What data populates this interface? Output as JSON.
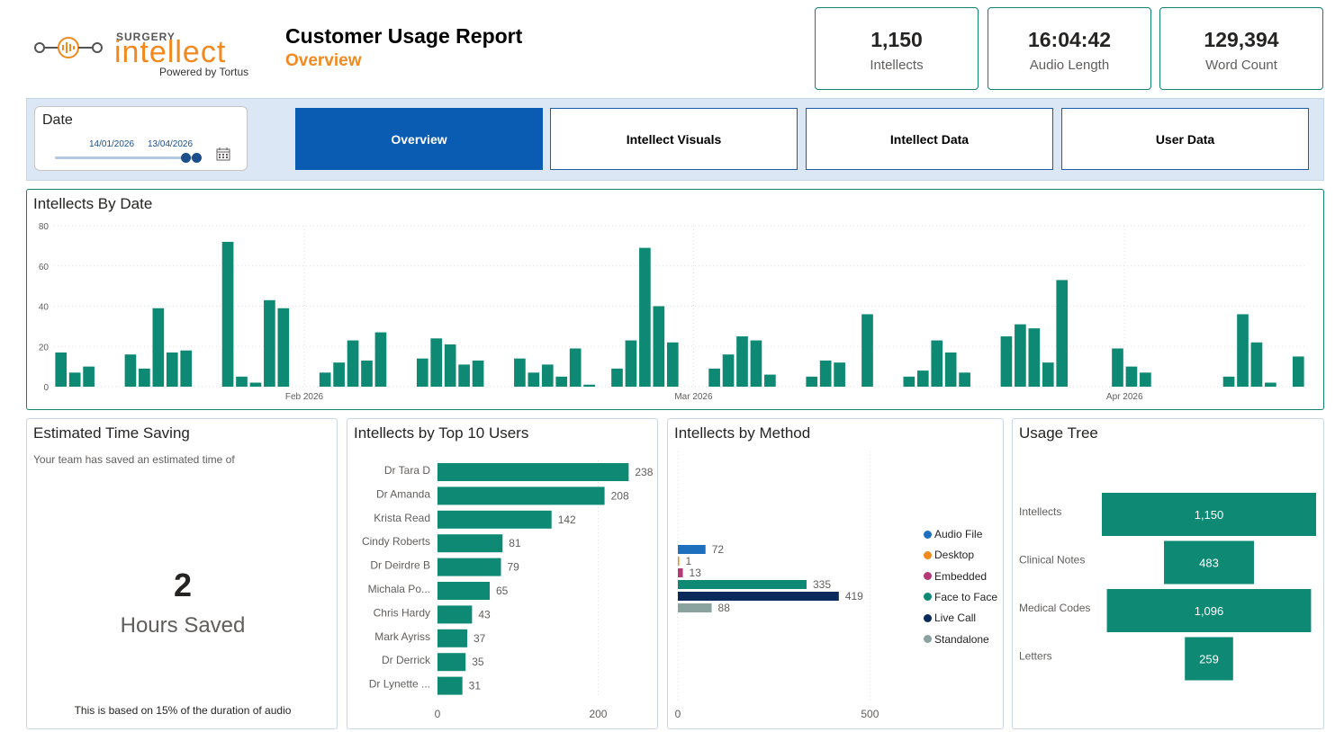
{
  "logo": {
    "brand_top": "SURGERY",
    "brand_main": "intellect",
    "tagline": "Powered by Tortus"
  },
  "header": {
    "title": "Customer Usage Report",
    "subtitle": "Overview"
  },
  "kpis": [
    {
      "value": "1,150",
      "label": "Intellects"
    },
    {
      "value": "16:04:42",
      "label": "Audio Length"
    },
    {
      "value": "129,394",
      "label": "Word Count"
    }
  ],
  "date_slicer": {
    "title": "Date",
    "start": "14/01/2026",
    "end": "13/04/2026"
  },
  "nav": [
    {
      "label": "Overview",
      "active": true
    },
    {
      "label": "Intellect Visuals",
      "active": false
    },
    {
      "label": "Intellect Data",
      "active": false
    },
    {
      "label": "User Data",
      "active": false
    }
  ],
  "panels": {
    "by_date": "Intellects By Date",
    "saving": "Estimated Time Saving",
    "top10": "Intellects by Top 10 Users",
    "method": "Intellects by Method",
    "tree": "Usage Tree"
  },
  "saving": {
    "intro": "Your team has saved an estimated time of",
    "value": "2",
    "unit": "Hours Saved",
    "note": "This is based on 15% of the duration of audio"
  },
  "colors": {
    "teal": "#0e8a74",
    "nav_blue": "#0a5cb3",
    "accent_orange": "#f2891e"
  },
  "chart_data": [
    {
      "type": "bar",
      "title": "Intellects By Date",
      "x_tick_labels": [
        "Feb 2026",
        "Mar 2026",
        "Apr 2026"
      ],
      "y_ticks": [
        0,
        20,
        40,
        60,
        80
      ],
      "ylim": [
        0,
        80
      ],
      "x_start": "2026-01-14",
      "series": [
        {
          "values": [
            17,
            7,
            10,
            0,
            0,
            16,
            9,
            39,
            17,
            18,
            0,
            0,
            72,
            5,
            2,
            43,
            39,
            0,
            0,
            7,
            12,
            23,
            13,
            27,
            0,
            0,
            14,
            24,
            21,
            11,
            13,
            0,
            0,
            14,
            7,
            11,
            5,
            19,
            1,
            0,
            9,
            23,
            69,
            40,
            22,
            0,
            0,
            9,
            16,
            25,
            23,
            6,
            0,
            0,
            5,
            13,
            12,
            0,
            36,
            0,
            0,
            5,
            8,
            23,
            17,
            7,
            0,
            0,
            25,
            31,
            29,
            12,
            53,
            0,
            0,
            0,
            19,
            10,
            7,
            0,
            0,
            0,
            0,
            0,
            5,
            36,
            22,
            2,
            0,
            15
          ]
        }
      ],
      "grid": true
    },
    {
      "type": "bar",
      "orientation": "horizontal",
      "title": "Intellects by Top 10 Users",
      "categories": [
        "Dr Tara D",
        "Dr Amanda",
        "Krista Read",
        "Cindy Roberts",
        "Dr Deirdre B",
        "Michala Po...",
        "Chris Hardy",
        "Mark Ayriss",
        "Dr Derrick",
        "Dr Lynette ..."
      ],
      "values": [
        238,
        208,
        142,
        81,
        79,
        65,
        43,
        37,
        35,
        31
      ],
      "x_ticks": [
        0,
        200
      ],
      "xlim": [
        0,
        260
      ]
    },
    {
      "type": "bar",
      "orientation": "horizontal",
      "title": "Intellects by Method",
      "series": [
        {
          "name": "Audio File",
          "value": 72,
          "color": "#1f6fbf"
        },
        {
          "name": "Desktop",
          "value": 1,
          "color": "#f2891e"
        },
        {
          "name": "Embedded",
          "value": 13,
          "color": "#b33a76"
        },
        {
          "name": "Face to Face",
          "value": 335,
          "color": "#0e8a74"
        },
        {
          "name": "Live Call",
          "value": 419,
          "color": "#0b2a5c"
        },
        {
          "name": "Standalone",
          "value": 88,
          "color": "#8aa39f"
        }
      ],
      "x_ticks": [
        0,
        500
      ],
      "xlim": [
        0,
        560
      ],
      "legend": "right"
    },
    {
      "type": "bar",
      "orientation": "funnel",
      "title": "Usage Tree",
      "categories": [
        "Intellects",
        "Clinical Notes",
        "Medical Codes",
        "Letters"
      ],
      "values": [
        1150,
        483,
        1096,
        259
      ],
      "value_labels": [
        "1,150",
        "483",
        "1,096",
        "259"
      ]
    }
  ]
}
